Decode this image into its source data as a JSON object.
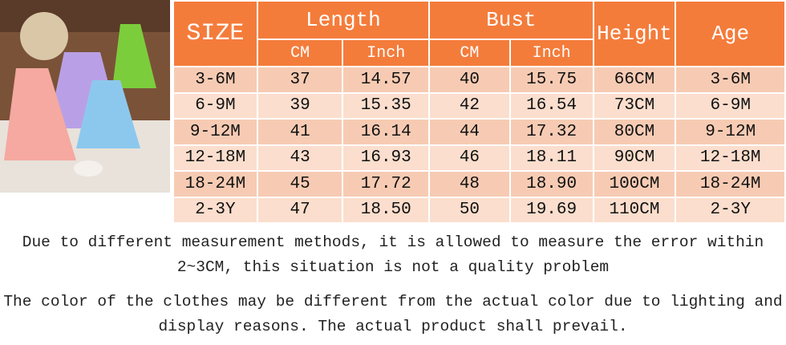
{
  "table": {
    "header": {
      "size": "SIZE",
      "length": "Length",
      "bust": "Bust",
      "height": "Height",
      "age": "Age",
      "subheaders": [
        "CM",
        "Inch",
        "CM",
        "Inch"
      ]
    },
    "rows": [
      [
        "3-6M",
        "37",
        "14.57",
        "40",
        "15.75",
        "66CM",
        "3-6M"
      ],
      [
        "6-9M",
        "39",
        "15.35",
        "42",
        "16.54",
        "73CM",
        "6-9M"
      ],
      [
        "9-12M",
        "41",
        "16.14",
        "44",
        "17.32",
        "80CM",
        "9-12M"
      ],
      [
        "12-18M",
        "43",
        "16.93",
        "46",
        "18.11",
        "90CM",
        "12-18M"
      ],
      [
        "18-24M",
        "45",
        "17.72",
        "48",
        "18.90",
        "100CM",
        "18-24M"
      ],
      [
        "2-3Y",
        "47",
        "18.50",
        "50",
        "19.69",
        "110CM",
        "2-3Y"
      ]
    ]
  },
  "notes": [
    "Due to different measurement methods, it is allowed to measure the error within 2~3CM, this situation is not a quality problem",
    "The color of the clothes may be different from the actual color due to lighting and display reasons. The actual product shall prevail."
  ]
}
